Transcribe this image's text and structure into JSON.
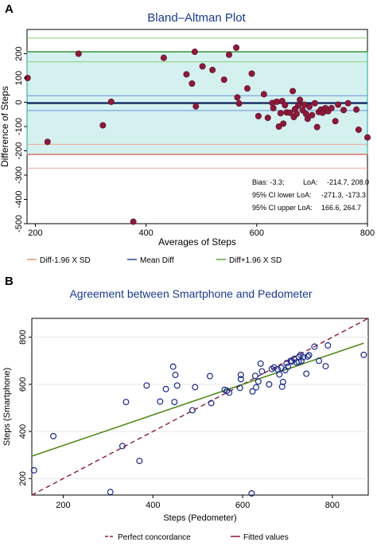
{
  "chart_data": [
    {
      "panel_label": "A",
      "type": "scatter",
      "title": "Bland–Altman Plot",
      "xlabel": "Averages of Steps",
      "ylabel": "Difference of Steps",
      "xlim": [
        185,
        800
      ],
      "ylim": [
        -500,
        300
      ],
      "xticks": [
        200,
        400,
        600,
        800
      ],
      "yticks": [
        -500,
        -400,
        -300,
        -200,
        -100,
        0,
        100,
        200
      ],
      "lines": {
        "mean_diff": -3.3,
        "loa_lower": -214.7,
        "loa_upper": 208.0,
        "ci_lower_loa": [
          -271.3,
          -173.3
        ],
        "ci_upper_loa": [
          166.6,
          264.7
        ],
        "ci_mean": [
          -34,
          27
        ]
      },
      "stats": [
        {
          "label": "Bias: -3.3;",
          "loa_label": "LoA:",
          "loa_value": "-214.7, 208.0"
        },
        {
          "label": "95% CI lower LoA:",
          "value": "-271.3, -173.3"
        },
        {
          "label": "95% CI upper LoA:",
          "value": "166.6, 264.7"
        }
      ],
      "legend": [
        {
          "name": "Diff-1.96 X SD",
          "color": "#e8857a"
        },
        {
          "name": "Mean Diff",
          "color": "#1a3a8c"
        },
        {
          "name": "Diff+1.96 X SD",
          "color": "#4aa832"
        }
      ],
      "points": [
        [
          186,
          100
        ],
        [
          222,
          -163
        ],
        [
          278,
          200
        ],
        [
          322,
          -95
        ],
        [
          337,
          2
        ],
        [
          377,
          -492
        ],
        [
          432,
          183
        ],
        [
          473,
          115
        ],
        [
          483,
          77
        ],
        [
          488,
          208
        ],
        [
          490,
          -17
        ],
        [
          502,
          148
        ],
        [
          520,
          133
        ],
        [
          541,
          93
        ],
        [
          550,
          196
        ],
        [
          563,
          225
        ],
        [
          565,
          20
        ],
        [
          568,
          -5
        ],
        [
          583,
          57
        ],
        [
          591,
          118
        ],
        [
          603,
          -57
        ],
        [
          613,
          33
        ],
        [
          620,
          -64
        ],
        [
          628,
          -3
        ],
        [
          630,
          -24
        ],
        [
          636,
          2
        ],
        [
          640,
          -100
        ],
        [
          643,
          -45
        ],
        [
          646,
          5
        ],
        [
          648,
          -88
        ],
        [
          651,
          -12
        ],
        [
          654,
          -42
        ],
        [
          660,
          -43
        ],
        [
          665,
          46
        ],
        [
          667,
          -61
        ],
        [
          669,
          -28
        ],
        [
          672,
          -48
        ],
        [
          675,
          -14
        ],
        [
          678,
          10
        ],
        [
          683,
          -33
        ],
        [
          686,
          -10
        ],
        [
          689,
          -48
        ],
        [
          692,
          -68
        ],
        [
          695,
          -18
        ],
        [
          700,
          -53
        ],
        [
          705,
          -4
        ],
        [
          709,
          -102
        ],
        [
          712,
          -40
        ],
        [
          716,
          -30
        ],
        [
          719,
          -43
        ],
        [
          724,
          -24
        ],
        [
          729,
          -37
        ],
        [
          735,
          -24
        ],
        [
          742,
          -78
        ],
        [
          747,
          -10
        ],
        [
          757,
          -32
        ],
        [
          765,
          -4
        ],
        [
          780,
          -30
        ],
        [
          784,
          -113
        ],
        [
          800,
          -145
        ]
      ]
    },
    {
      "panel_label": "B",
      "type": "scatter",
      "title": "Agreement between Smartphone and Pedometer",
      "xlabel": "Steps (Pedometer)",
      "ylabel": "Steps (Smartphone)",
      "xlim": [
        130,
        880
      ],
      "ylim": [
        130,
        880
      ],
      "xticks": [
        200,
        400,
        600,
        800
      ],
      "yticks": [
        200,
        400,
        600,
        800
      ],
      "lines": {
        "perfect_concordance": {
          "slope": 1,
          "intercept": 0
        },
        "fitted_values": {
          "x": [
            130,
            870
          ],
          "y": [
            295,
            775
          ]
        }
      },
      "legend": [
        {
          "name": "Perfect concordance",
          "color": "#8b1a3a"
        },
        {
          "name": "Fitted values",
          "color": "#8b1a3a"
        }
      ],
      "points": [
        [
          135,
          235
        ],
        [
          178,
          380
        ],
        [
          305,
          143
        ],
        [
          332,
          338
        ],
        [
          340,
          525
        ],
        [
          370,
          275
        ],
        [
          386,
          595
        ],
        [
          416,
          527
        ],
        [
          429,
          580
        ],
        [
          445,
          675
        ],
        [
          448,
          525
        ],
        [
          450,
          640
        ],
        [
          454,
          595
        ],
        [
          488,
          490
        ],
        [
          494,
          588
        ],
        [
          527,
          635
        ],
        [
          530,
          520
        ],
        [
          560,
          577
        ],
        [
          565,
          573
        ],
        [
          570,
          565
        ],
        [
          594,
          585
        ],
        [
          596,
          640
        ],
        [
          596,
          622
        ],
        [
          622,
          570
        ],
        [
          620,
          137
        ],
        [
          628,
          636
        ],
        [
          630,
          587
        ],
        [
          635,
          612
        ],
        [
          640,
          688
        ],
        [
          643,
          655
        ],
        [
          659,
          600
        ],
        [
          665,
          665
        ],
        [
          670,
          672
        ],
        [
          678,
          664
        ],
        [
          682,
          642
        ],
        [
          686,
          670
        ],
        [
          688,
          590
        ],
        [
          690,
          610
        ],
        [
          695,
          660
        ],
        [
          698,
          690
        ],
        [
          701,
          675
        ],
        [
          707,
          700
        ],
        [
          710,
          697
        ],
        [
          715,
          708
        ],
        [
          720,
          693
        ],
        [
          725,
          695
        ],
        [
          725,
          716
        ],
        [
          729,
          725
        ],
        [
          731,
          700
        ],
        [
          735,
          715
        ],
        [
          742,
          645
        ],
        [
          745,
          718
        ],
        [
          748,
          724
        ],
        [
          760,
          760
        ],
        [
          770,
          700
        ],
        [
          785,
          677
        ],
        [
          790,
          765
        ],
        [
          870,
          725
        ]
      ]
    }
  ]
}
